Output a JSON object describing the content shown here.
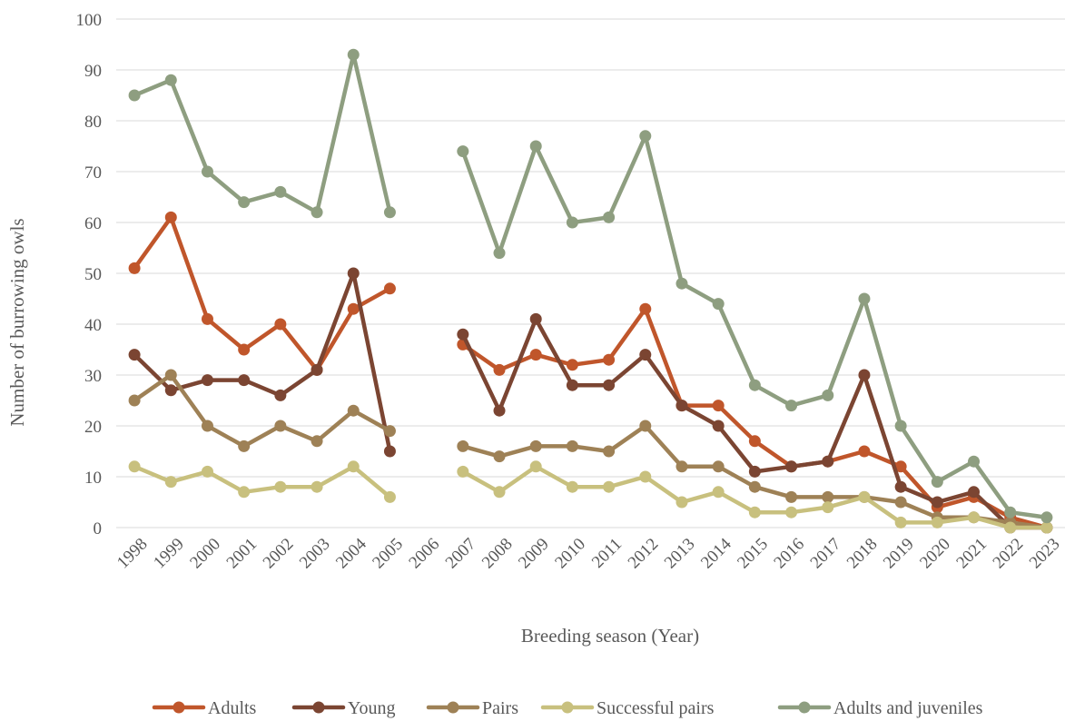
{
  "chart_data": {
    "type": "line",
    "xlabel": "Breeding season (Year)",
    "ylabel": "Number of burrowing owls",
    "ylim": [
      0,
      100
    ],
    "yticks": [
      "0",
      "10",
      "20",
      "30",
      "40",
      "50",
      "60",
      "70",
      "80",
      "90",
      "100"
    ],
    "grid": true,
    "legend_position": "bottom",
    "categories": [
      "1998",
      "1999",
      "2000",
      "2001",
      "2002",
      "2003",
      "2004",
      "2005",
      "2006",
      "2007",
      "2008",
      "2009",
      "2010",
      "2011",
      "2012",
      "2013",
      "2014",
      "2015",
      "2016",
      "2017",
      "2018",
      "2019",
      "2020",
      "2021",
      "2022",
      "2023"
    ],
    "series": [
      {
        "name": "Adults",
        "color": "#C0562B",
        "values": [
          51,
          61,
          41,
          35,
          40,
          31,
          43,
          47,
          null,
          36,
          31,
          34,
          32,
          33,
          43,
          24,
          24,
          17,
          12,
          13,
          15,
          12,
          4,
          6,
          2,
          0
        ]
      },
      {
        "name": "Young",
        "color": "#7B4532",
        "values": [
          34,
          27,
          29,
          29,
          26,
          31,
          50,
          15,
          null,
          38,
          23,
          41,
          28,
          28,
          34,
          24,
          20,
          11,
          12,
          13,
          30,
          8,
          5,
          7,
          0,
          0
        ]
      },
      {
        "name": "Pairs",
        "color": "#9E8156",
        "values": [
          25,
          30,
          20,
          16,
          20,
          17,
          23,
          19,
          null,
          16,
          14,
          16,
          16,
          15,
          20,
          12,
          12,
          8,
          6,
          6,
          6,
          5,
          2,
          2,
          1,
          0
        ]
      },
      {
        "name": "Successful pairs",
        "color": "#C8C07E",
        "values": [
          12,
          9,
          11,
          7,
          8,
          8,
          12,
          6,
          null,
          11,
          7,
          12,
          8,
          8,
          10,
          5,
          7,
          3,
          3,
          4,
          6,
          1,
          1,
          2,
          0,
          0
        ]
      },
      {
        "name": "Adults and juveniles",
        "color": "#8E9E80",
        "values": [
          85,
          88,
          70,
          64,
          66,
          62,
          93,
          62,
          null,
          74,
          54,
          75,
          60,
          61,
          77,
          48,
          44,
          28,
          24,
          26,
          45,
          20,
          9,
          13,
          3,
          2
        ]
      }
    ]
  }
}
